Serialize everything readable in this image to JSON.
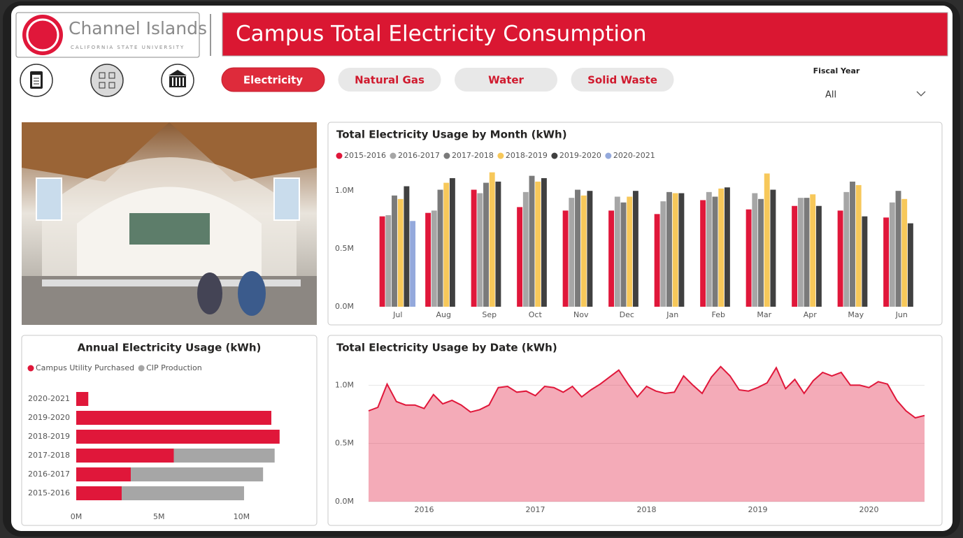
{
  "header": {
    "logo_name": "Channel Islands",
    "logo_subtitle": "CALIFORNIA STATE UNIVERSITY",
    "title": "Campus Total Electricity Consumption"
  },
  "nav": {
    "buttons": [
      "Electricity",
      "Natural Gas",
      "Water",
      "Solid Waste"
    ],
    "active": 0
  },
  "slicer": {
    "label": "Fiscal Year",
    "value": "All"
  },
  "chart_data": [
    {
      "type": "grouped_bar",
      "title": "Total Electricity Usage by Month (kWh)",
      "categories": [
        "Jul",
        "Aug",
        "Sep",
        "Oct",
        "Nov",
        "Dec",
        "Jan",
        "Feb",
        "Mar",
        "Apr",
        "May",
        "Jun"
      ],
      "series": [
        {
          "name": "2015-2016",
          "color": "#e0173a",
          "values": [
            780000,
            810000,
            1010000,
            860000,
            830000,
            830000,
            800000,
            920000,
            840000,
            870000,
            830000,
            770000
          ]
        },
        {
          "name": "2016-2017",
          "color": "#a6a6a6",
          "values": [
            790000,
            830000,
            980000,
            990000,
            940000,
            950000,
            910000,
            990000,
            980000,
            940000,
            990000,
            900000
          ]
        },
        {
          "name": "2017-2018",
          "color": "#7a7a7a",
          "values": [
            960000,
            1010000,
            1070000,
            1130000,
            1010000,
            900000,
            990000,
            950000,
            930000,
            940000,
            1080000,
            1000000
          ]
        },
        {
          "name": "2018-2019",
          "color": "#f7c85a",
          "values": [
            930000,
            1070000,
            1160000,
            1080000,
            960000,
            950000,
            980000,
            1020000,
            1150000,
            970000,
            1050000,
            930000
          ]
        },
        {
          "name": "2019-2020",
          "color": "#404040",
          "values": [
            1040000,
            1110000,
            1080000,
            1110000,
            1000000,
            1000000,
            980000,
            1030000,
            1010000,
            870000,
            780000,
            720000
          ]
        },
        {
          "name": "2020-2021",
          "color": "#94a9dc",
          "values": [
            740000,
            null,
            null,
            null,
            null,
            null,
            null,
            null,
            null,
            null,
            null,
            null
          ]
        }
      ],
      "ylim": [
        0,
        1170000
      ],
      "yticks": [
        {
          "value": 0,
          "label": "0.0M"
        },
        {
          "value": 500000,
          "label": "0.5M"
        },
        {
          "value": 1000000,
          "label": "1.0M"
        }
      ],
      "grid": false
    },
    {
      "type": "stacked_hbar",
      "title": "Annual Electricity Usage (kWh)",
      "categories": [
        "2020-2021",
        "2019-2020",
        "2018-2019",
        "2017-2018",
        "2016-2017",
        "2015-2016"
      ],
      "series": [
        {
          "name": "Campus Utility Purchased",
          "color": "#e0173a",
          "values": [
            730000,
            11800000,
            12300000,
            5900000,
            3300000,
            2750000
          ]
        },
        {
          "name": "CIP Production",
          "color": "#a6a6a6",
          "values": [
            0,
            0,
            0,
            6100000,
            8000000,
            7400000
          ]
        }
      ],
      "xlim": [
        0,
        14000000
      ],
      "xticks": [
        {
          "value": 0,
          "label": "0M"
        },
        {
          "value": 5000000,
          "label": "5M"
        },
        {
          "value": 10000000,
          "label": "10M"
        }
      ],
      "grid": false
    },
    {
      "type": "area",
      "title": "Total Electricity Usage by Date (kWh)",
      "x": [
        "2015-07",
        "2015-08",
        "2015-09",
        "2015-10",
        "2015-11",
        "2015-12",
        "2016-01",
        "2016-02",
        "2016-03",
        "2016-04",
        "2016-05",
        "2016-06",
        "2016-07",
        "2016-08",
        "2016-09",
        "2016-10",
        "2016-11",
        "2016-12",
        "2017-01",
        "2017-02",
        "2017-03",
        "2017-04",
        "2017-05",
        "2017-06",
        "2017-07",
        "2017-08",
        "2017-09",
        "2017-10",
        "2017-11",
        "2017-12",
        "2018-01",
        "2018-02",
        "2018-03",
        "2018-04",
        "2018-05",
        "2018-06",
        "2018-07",
        "2018-08",
        "2018-09",
        "2018-10",
        "2018-11",
        "2018-12",
        "2019-01",
        "2019-02",
        "2019-03",
        "2019-04",
        "2019-05",
        "2019-06",
        "2019-07",
        "2019-08",
        "2019-09",
        "2019-10",
        "2019-11",
        "2019-12",
        "2020-01",
        "2020-02",
        "2020-03",
        "2020-04",
        "2020-05",
        "2020-06",
        "2020-07"
      ],
      "values": [
        780000,
        810000,
        1010000,
        860000,
        830000,
        830000,
        800000,
        920000,
        840000,
        870000,
        830000,
        770000,
        790000,
        830000,
        980000,
        990000,
        940000,
        950000,
        910000,
        990000,
        980000,
        940000,
        990000,
        900000,
        960000,
        1010000,
        1070000,
        1130000,
        1010000,
        900000,
        990000,
        950000,
        930000,
        940000,
        1080000,
        1000000,
        930000,
        1070000,
        1160000,
        1080000,
        960000,
        950000,
        980000,
        1020000,
        1150000,
        970000,
        1050000,
        930000,
        1040000,
        1110000,
        1080000,
        1110000,
        1000000,
        1000000,
        980000,
        1030000,
        1010000,
        870000,
        780000,
        720000,
        740000
      ],
      "color": "#e0173a",
      "xlim": [
        "2015-07",
        "2020-07"
      ],
      "xticks": [
        {
          "value": "2016-01",
          "label": "2016"
        },
        {
          "value": "2017-01",
          "label": "2017"
        },
        {
          "value": "2018-01",
          "label": "2018"
        },
        {
          "value": "2019-01",
          "label": "2019"
        },
        {
          "value": "2020-01",
          "label": "2020"
        }
      ],
      "ylim": [
        0,
        1200000
      ],
      "yticks": [
        {
          "value": 0,
          "label": "0.0M"
        },
        {
          "value": 500000,
          "label": "0.5M"
        },
        {
          "value": 1000000,
          "label": "1.0M"
        }
      ],
      "grid": true
    }
  ]
}
